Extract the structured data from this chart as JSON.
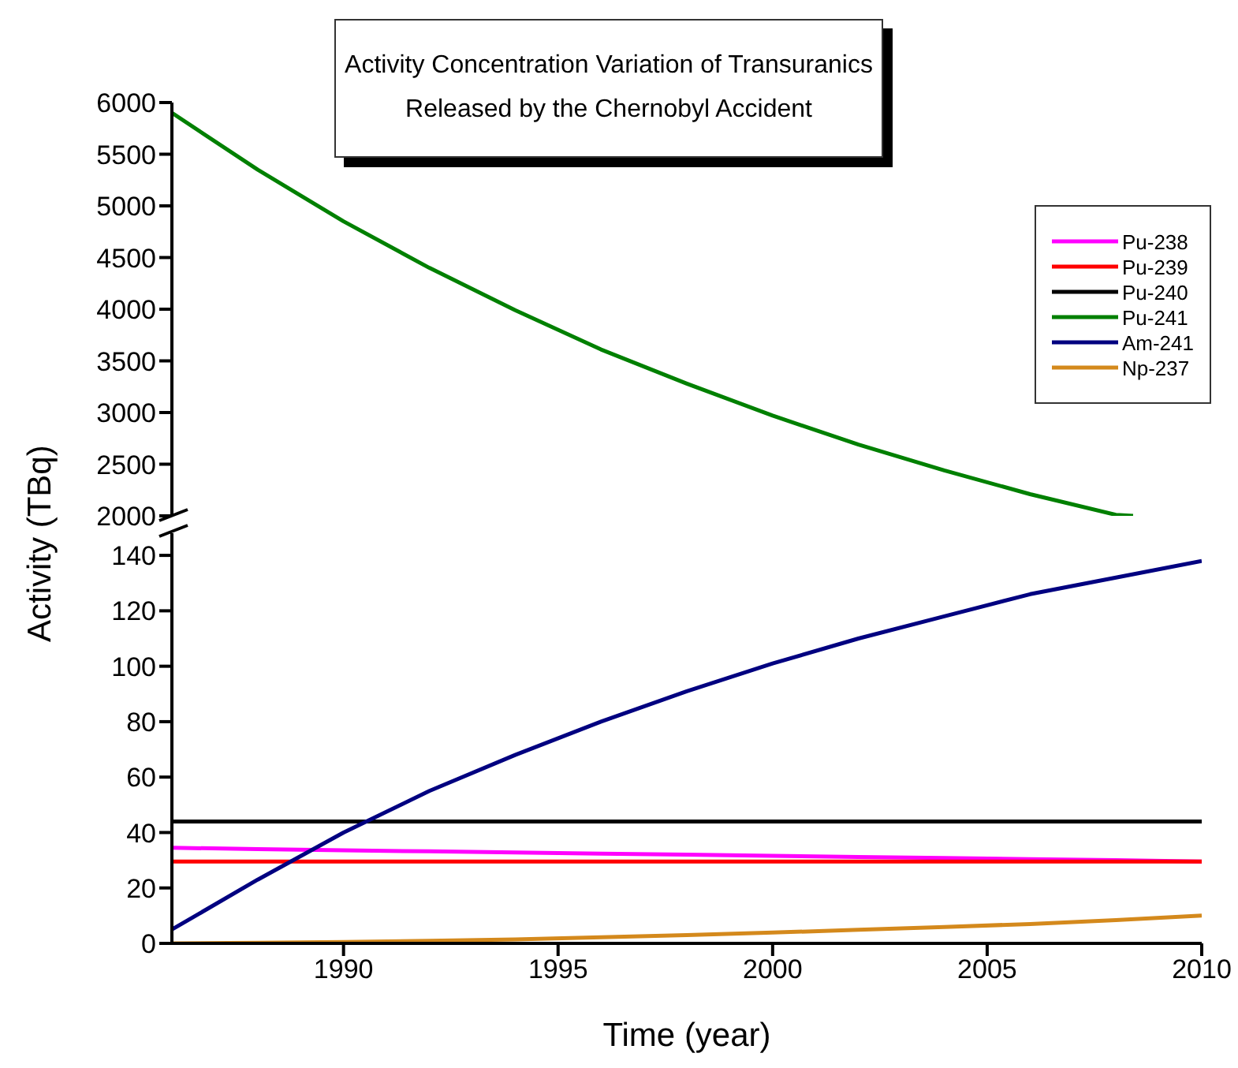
{
  "chart_data": [
    {
      "type": "line",
      "title": "Activity Concentration Variation of Transuranics\nReleased by the Chernobyl Accident",
      "x": [
        1986,
        1988,
        1990,
        1992,
        1994,
        1996,
        1998,
        2000,
        2002,
        2004,
        2006,
        2008,
        2008.4
      ],
      "xlim": [
        1986,
        2010
      ],
      "ylim": [
        2000,
        6000
      ],
      "yticks": [
        2000,
        2500,
        3000,
        3500,
        4000,
        4500,
        5000,
        5500,
        6000
      ],
      "tick_labels": "y",
      "legend": "right",
      "grid": false,
      "series": [
        {
          "name": "Pu-241",
          "color": "#008000",
          "values": [
            5900,
            5350,
            4850,
            4400,
            3990,
            3610,
            3280,
            2970,
            2690,
            2440,
            2210,
            2010,
            2000
          ]
        }
      ]
    },
    {
      "type": "line",
      "xlabel": "Time (year)",
      "ylabel": "Activity (TBq)",
      "x": [
        1986,
        1988,
        1990,
        1992,
        1994,
        1996,
        1998,
        2000,
        2002,
        2004,
        2006,
        2008,
        2010
      ],
      "xlim": [
        1986,
        2010
      ],
      "xticks": [
        1990,
        1995,
        2000,
        2005,
        2010
      ],
      "ylim": [
        0,
        148
      ],
      "yticks": [
        0,
        20,
        40,
        60,
        80,
        100,
        120,
        140
      ],
      "grid": false,
      "series": [
        {
          "name": "Pu-238",
          "color": "#ff00ff",
          "values": [
            34.5,
            34,
            33.6,
            33.2,
            32.8,
            32.4,
            32,
            31.6,
            31.2,
            30.8,
            30.4,
            30,
            29.5
          ]
        },
        {
          "name": "Pu-239",
          "color": "#ff0000",
          "values": [
            29.5,
            29.5,
            29.5,
            29.5,
            29.5,
            29.5,
            29.5,
            29.5,
            29.5,
            29.5,
            29.5,
            29.5,
            29.5
          ]
        },
        {
          "name": "Pu-240",
          "color": "#000000",
          "values": [
            44,
            44,
            44,
            44,
            44,
            44,
            44,
            44,
            44,
            44,
            44,
            44,
            44
          ]
        },
        {
          "name": "Am-241",
          "color": "#000080",
          "values": [
            5,
            23,
            40,
            55,
            68,
            80,
            91,
            101,
            110,
            118,
            126,
            132,
            138
          ]
        },
        {
          "name": "Np-237",
          "color": "#d4891c",
          "values": [
            0,
            0.2,
            0.5,
            0.9,
            1.4,
            2.2,
            3,
            3.9,
            4.9,
            5.9,
            7,
            8.4,
            10
          ]
        }
      ]
    }
  ]
}
